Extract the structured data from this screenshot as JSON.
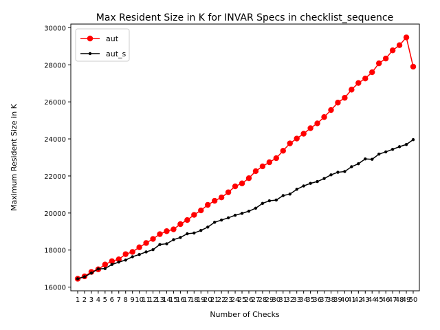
{
  "chart_data": {
    "type": "line",
    "title": "Max Resident Size in K for INVAR Specs in checklist_sequence",
    "xlabel": "Number of Checks",
    "ylabel": "Maximum Resident Size in K",
    "ylim": [
      15800,
      30200
    ],
    "yticks": [
      16000,
      18000,
      20000,
      22000,
      24000,
      26000,
      28000,
      30000
    ],
    "grid": false,
    "legend_position": "top-left",
    "x": [
      1,
      2,
      3,
      4,
      5,
      6,
      7,
      8,
      9,
      10,
      11,
      12,
      13,
      14,
      15,
      16,
      17,
      18,
      19,
      20,
      21,
      22,
      23,
      24,
      25,
      26,
      27,
      28,
      29,
      30,
      31,
      32,
      33,
      34,
      35,
      36,
      37,
      38,
      39,
      40,
      41,
      42,
      43,
      44,
      45,
      46,
      47,
      48,
      49,
      50
    ],
    "series": [
      {
        "name": "aut",
        "color": "#ff0000",
        "marker": "circle",
        "values": [
          16450,
          16580,
          16820,
          16960,
          17220,
          17400,
          17500,
          17780,
          17900,
          18150,
          18380,
          18600,
          18860,
          19020,
          19120,
          19400,
          19620,
          19900,
          20140,
          20440,
          20660,
          20840,
          21120,
          21440,
          21600,
          21880,
          22260,
          22520,
          22740,
          22960,
          23360,
          23760,
          24020,
          24280,
          24580,
          24840,
          25180,
          25560,
          25960,
          26220,
          26660,
          27020,
          27260,
          27600,
          28080,
          28340,
          28780,
          29060,
          29480,
          27900
        ]
      },
      {
        "name": "aut_s",
        "color": "#000000",
        "marker": "small-dot",
        "values": [
          16450,
          16560,
          16760,
          16980,
          17000,
          17220,
          17350,
          17460,
          17640,
          17760,
          17900,
          18020,
          18300,
          18340,
          18560,
          18680,
          18880,
          18920,
          19060,
          19240,
          19500,
          19620,
          19740,
          19880,
          19980,
          20100,
          20260,
          20520,
          20660,
          20700,
          20940,
          21020,
          21280,
          21460,
          21600,
          21700,
          21860,
          22060,
          22200,
          22240,
          22500,
          22660,
          22920,
          22900,
          23180,
          23300,
          23440,
          23580,
          23700,
          23960
        ]
      }
    ]
  }
}
